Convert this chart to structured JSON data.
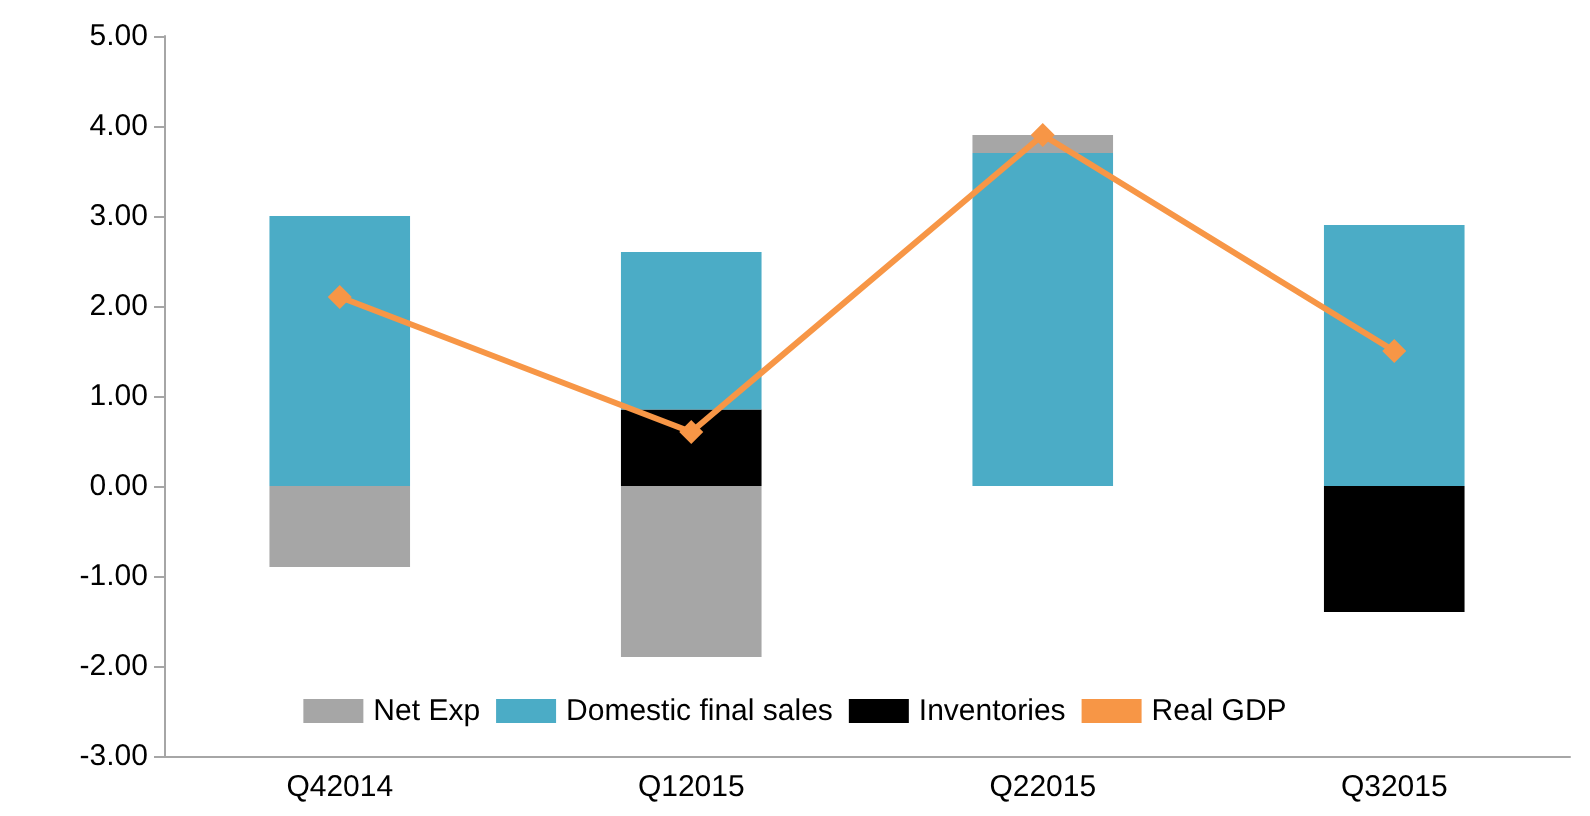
{
  "chart_data": {
    "type": "bar",
    "stacked": true,
    "categories": [
      "Q42014",
      "Q12015",
      "Q22015",
      "Q32015"
    ],
    "series": [
      {
        "name": "Inventories",
        "color": "#000000",
        "values": [
          0,
          0.85,
          0,
          -1.4
        ]
      },
      {
        "name": "Domestic final sales",
        "color": "#4bacc6",
        "values": [
          3.0,
          1.75,
          3.7,
          2.9
        ]
      },
      {
        "name": "Net Exp",
        "color": "#a6a6a6",
        "values": [
          -0.9,
          -1.9,
          0.2,
          0
        ]
      },
      {
        "name": "Real GDP",
        "type": "line",
        "color": "#f79646",
        "marker": "diamond",
        "values": [
          2.1,
          0.6,
          3.9,
          1.5
        ]
      }
    ],
    "ylim": [
      -3,
      5
    ],
    "yticks": [
      {
        "value": -3,
        "label": "-3.00"
      },
      {
        "value": -2,
        "label": "-2.00"
      },
      {
        "value": -1,
        "label": "-1.00"
      },
      {
        "value": 0,
        "label": "0.00"
      },
      {
        "value": 1,
        "label": "1.00"
      },
      {
        "value": 2,
        "label": "2.00"
      },
      {
        "value": 3,
        "label": "3.00"
      },
      {
        "value": 4,
        "label": "4.00"
      },
      {
        "value": 5,
        "label": "5.00"
      }
    ],
    "grid": false,
    "legend": "bottom"
  }
}
